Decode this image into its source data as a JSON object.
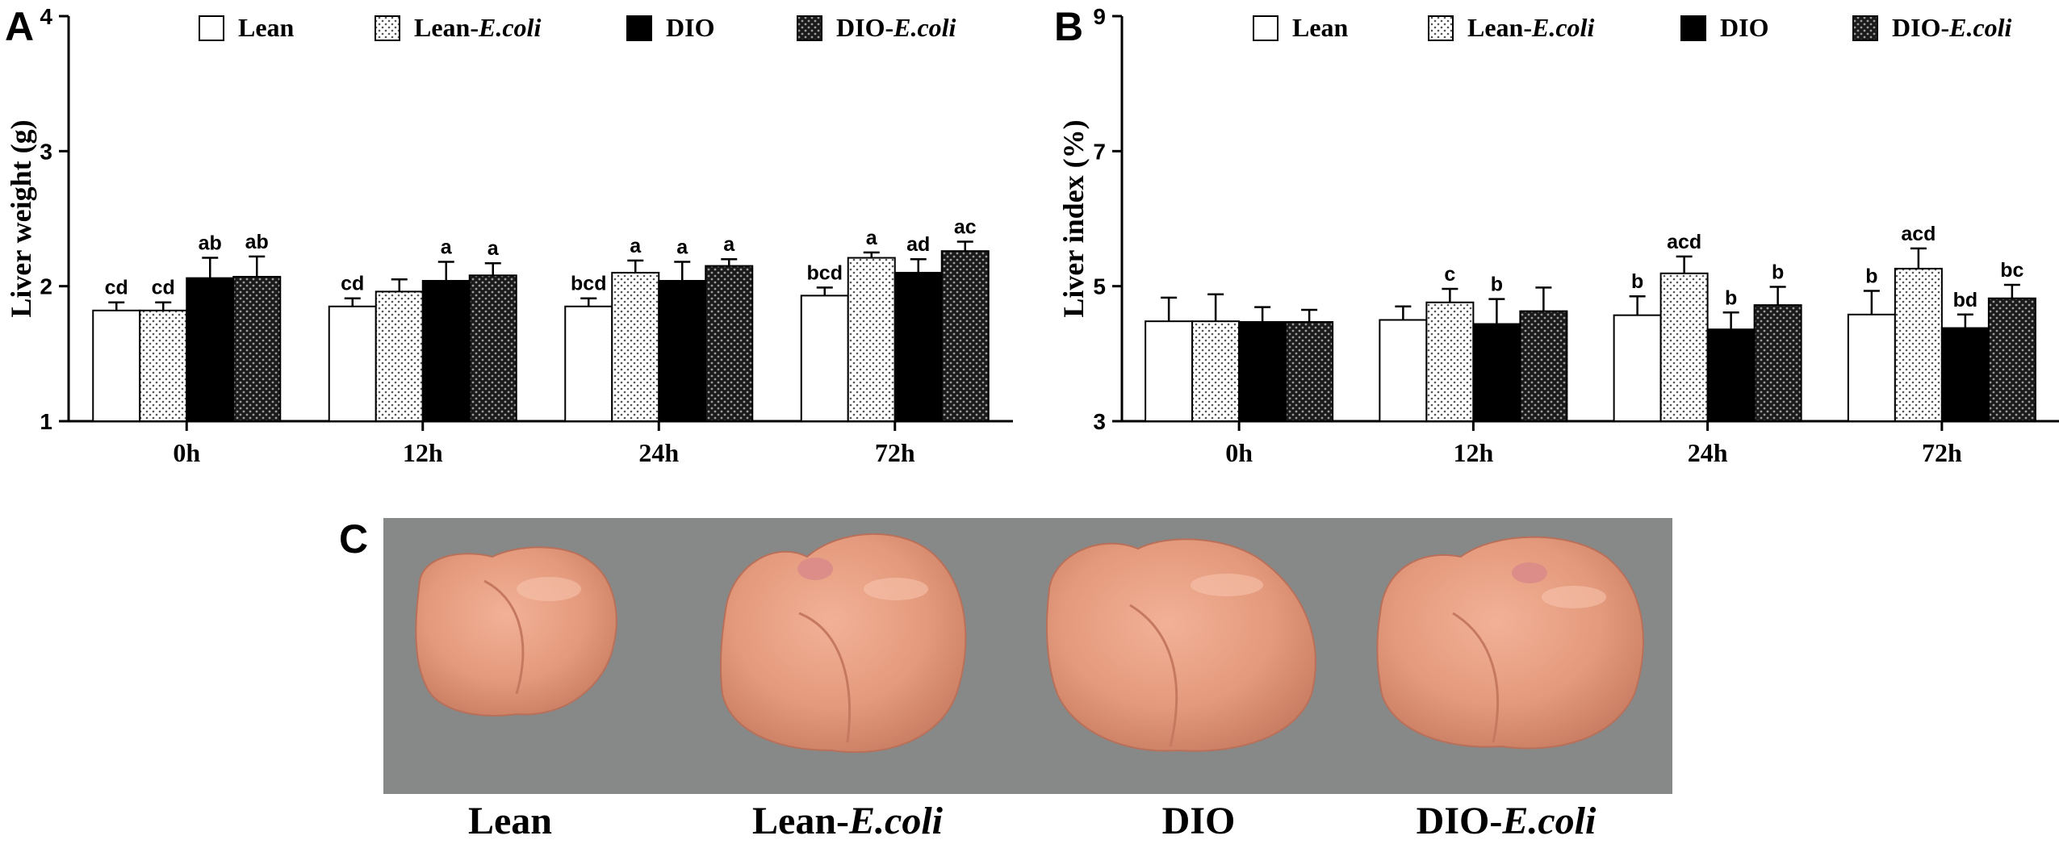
{
  "panel_labels": {
    "a": "A",
    "b": "B",
    "c": "C"
  },
  "legend": [
    {
      "name": "Lean",
      "pattern": "white"
    },
    {
      "name": "Lean-",
      "italic": "E.coli",
      "pattern": "dots"
    },
    {
      "name": "DIO",
      "pattern": "black"
    },
    {
      "name": "DIO-",
      "italic": "E.coli",
      "pattern": "darkdots"
    }
  ],
  "chart_data": [
    {
      "type": "bar",
      "panel": "A",
      "ylabel": "Liver weight (g)",
      "ylim": [
        1,
        4
      ],
      "yticks": [
        "1",
        "2",
        "3",
        "4"
      ],
      "categories": [
        "0h",
        "12h",
        "24h",
        "72h"
      ],
      "series": [
        {
          "name": "Lean",
          "values": [
            1.82,
            1.85,
            1.85,
            1.93
          ],
          "errors": [
            0.06,
            0.06,
            0.06,
            0.06
          ],
          "labels": [
            "cd",
            "cd",
            "bcd",
            "bcd"
          ]
        },
        {
          "name": "Lean-E.coli",
          "values": [
            1.82,
            1.96,
            2.1,
            2.21
          ],
          "errors": [
            0.06,
            0.09,
            0.09,
            0.04
          ],
          "labels": [
            "cd",
            "",
            "a",
            "a"
          ]
        },
        {
          "name": "DIO",
          "values": [
            2.06,
            2.04,
            2.04,
            2.1
          ],
          "errors": [
            0.15,
            0.14,
            0.14,
            0.1
          ],
          "labels": [
            "ab",
            "a",
            "a",
            "ad"
          ]
        },
        {
          "name": "DIO-E.coli",
          "values": [
            2.07,
            2.08,
            2.15,
            2.26
          ],
          "errors": [
            0.15,
            0.09,
            0.05,
            0.07
          ],
          "labels": [
            "ab",
            "a",
            "a",
            "ac"
          ]
        }
      ]
    },
    {
      "type": "bar",
      "panel": "B",
      "ylabel": "Liver index (%)",
      "ylim": [
        3,
        9
      ],
      "yticks": [
        "3",
        "5",
        "7",
        "9"
      ],
      "categories": [
        "0h",
        "12h",
        "24h",
        "72h"
      ],
      "series": [
        {
          "name": "Lean",
          "values": [
            4.48,
            4.5,
            4.57,
            4.58
          ],
          "errors": [
            0.35,
            0.2,
            0.28,
            0.35
          ],
          "labels": [
            "",
            "",
            "b",
            "b"
          ]
        },
        {
          "name": "Lean-E.coli",
          "values": [
            4.48,
            4.76,
            5.19,
            5.26
          ],
          "errors": [
            0.4,
            0.2,
            0.25,
            0.3
          ],
          "labels": [
            "",
            "c",
            "acd",
            "acd"
          ]
        },
        {
          "name": "DIO",
          "values": [
            4.47,
            4.44,
            4.36,
            4.38
          ],
          "errors": [
            0.22,
            0.37,
            0.25,
            0.2
          ],
          "labels": [
            "",
            "b",
            "b",
            "bd"
          ]
        },
        {
          "name": "DIO-E.coli",
          "values": [
            4.47,
            4.63,
            4.72,
            4.82
          ],
          "errors": [
            0.18,
            0.35,
            0.27,
            0.2
          ],
          "labels": [
            "",
            "",
            "b",
            "bc"
          ]
        }
      ]
    }
  ],
  "photo": {
    "background": "#868988",
    "liver_color": "#e49a7c",
    "captions": [
      {
        "name": "Lean"
      },
      {
        "name": "Lean-",
        "italic": "E.coli"
      },
      {
        "name": "DIO"
      },
      {
        "name": "DIO-",
        "italic": "E.coli"
      }
    ]
  }
}
